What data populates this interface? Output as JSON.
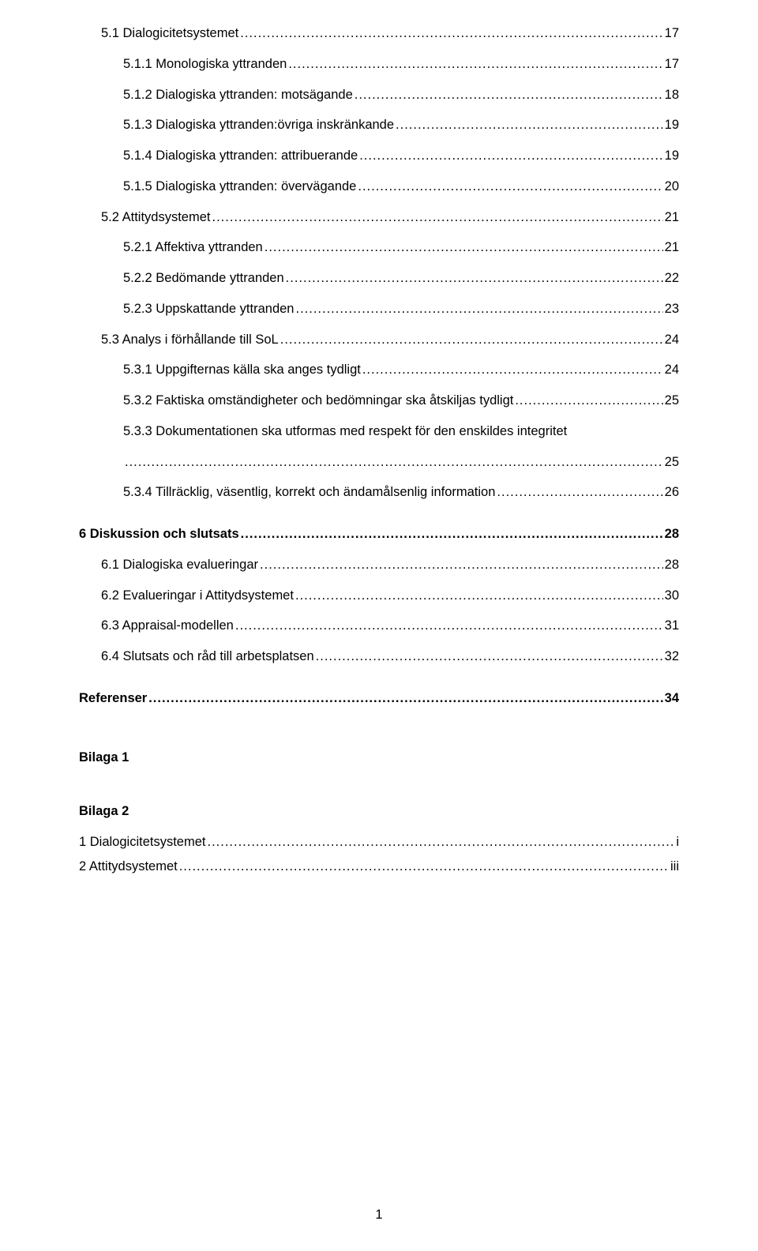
{
  "entries": [
    {
      "label": "5.1 Dialogicitetsystemet",
      "page": "17",
      "indent": 1,
      "bold": false,
      "gap": false
    },
    {
      "label": "5.1.1 Monologiska yttranden",
      "page": "17",
      "indent": 2,
      "bold": false,
      "gap": false
    },
    {
      "label": "5.1.2 Dialogiska yttranden: motsägande",
      "page": "18",
      "indent": 2,
      "bold": false,
      "gap": false
    },
    {
      "label": "5.1.3 Dialogiska yttranden:övriga inskränkande",
      "page": "19",
      "indent": 2,
      "bold": false,
      "gap": false
    },
    {
      "label": "5.1.4 Dialogiska yttranden: attribuerande",
      "page": "19",
      "indent": 2,
      "bold": false,
      "gap": false
    },
    {
      "label": "5.1.5 Dialogiska yttranden: övervägande",
      "page": "20",
      "indent": 2,
      "bold": false,
      "gap": false
    },
    {
      "label": "5.2 Attitydsystemet",
      "page": "21",
      "indent": 1,
      "bold": false,
      "gap": false
    },
    {
      "label": "5.2.1 Affektiva yttranden",
      "page": "21",
      "indent": 2,
      "bold": false,
      "gap": false
    },
    {
      "label": "5.2.2 Bedömande yttranden",
      "page": "22",
      "indent": 2,
      "bold": false,
      "gap": false
    },
    {
      "label": "5.2.3 Uppskattande yttranden",
      "page": "23",
      "indent": 2,
      "bold": false,
      "gap": false
    },
    {
      "label": "5.3 Analys i förhållande till SoL",
      "page": "24",
      "indent": 1,
      "bold": false,
      "gap": false
    },
    {
      "label": "5.3.1 Uppgifternas källa ska anges tydligt",
      "page": "24",
      "indent": 2,
      "bold": false,
      "gap": false
    },
    {
      "label": "5.3.2 Faktiska omständigheter och bedömningar ska åtskiljas tydligt",
      "page": "25",
      "indent": 2,
      "bold": false,
      "gap": false
    },
    {
      "label": "5.3.3 Dokumentationen ska utformas med respekt för den enskildes integritet",
      "page": "25",
      "indent": 2,
      "bold": false,
      "gap": false,
      "wrap": true
    },
    {
      "label": "5.3.4 Tillräcklig, väsentlig, korrekt och ändamålsenlig information",
      "page": "26",
      "indent": 2,
      "bold": false,
      "gap": false
    },
    {
      "label": "6 Diskussion och slutsats",
      "page": "28",
      "indent": 0,
      "bold": true,
      "gap": true
    },
    {
      "label": "6.1 Dialogiska evalueringar",
      "page": "28",
      "indent": 1,
      "bold": false,
      "gap": false
    },
    {
      "label": "6.2 Evalueringar i Attitydsystemet",
      "page": "30",
      "indent": 1,
      "bold": false,
      "gap": false
    },
    {
      "label": "6.3 Appraisal-modellen",
      "page": "31",
      "indent": 1,
      "bold": false,
      "gap": false
    },
    {
      "label": "6.4 Slutsats och råd till arbetsplatsen",
      "page": "32",
      "indent": 1,
      "bold": false,
      "gap": false
    },
    {
      "label": "Referenser",
      "page": "34",
      "indent": 0,
      "bold": true,
      "gap": true
    }
  ],
  "appendix": {
    "heading1": "Bilaga 1",
    "heading2": "Bilaga 2",
    "items": [
      {
        "label": "1 Dialogicitetsystemet",
        "page": "i"
      },
      {
        "label": "2 Attitydsystemet",
        "page": "iii"
      }
    ]
  },
  "pageNumber": "1"
}
